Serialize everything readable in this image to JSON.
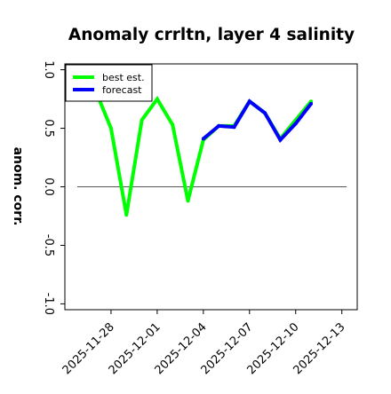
{
  "chart_data": {
    "type": "line",
    "title": "Anomaly crrltn, layer 4 salinity",
    "ylabel": "anom. corr.",
    "xlabel": "",
    "ylim": [
      -1.05,
      1.05
    ],
    "xlim": [
      "2025-11-25",
      "2025-12-14"
    ],
    "y_ticks": [
      -1.0,
      -0.5,
      0.0,
      0.5,
      1.0
    ],
    "y_tick_labels": [
      "-1.0",
      "-0.5",
      "0.0",
      "0.5",
      "1.0"
    ],
    "x_ticks": [
      "2025-11-28",
      "2025-12-01",
      "2025-12-04",
      "2025-12-07",
      "2025-12-10",
      "2025-12-13"
    ],
    "x_tick_labels": [
      "2025-11-28",
      "2025-12-01",
      "2025-12-04",
      "2025-12-07",
      "2025-12-10",
      "2025-12-13"
    ],
    "highlighted_tick": "2025-12-04",
    "zero_line": 0.0,
    "grid": false,
    "legend_position": "top-left",
    "series": [
      {
        "name": "best est.",
        "color": "#00ff00",
        "x": [
          "2025-11-27",
          "2025-11-28",
          "2025-11-29",
          "2025-11-30",
          "2025-12-01",
          "2025-12-02",
          "2025-12-03",
          "2025-12-04",
          "2025-12-05",
          "2025-12-06",
          "2025-12-07",
          "2025-12-08",
          "2025-12-09",
          "2025-12-10",
          "2025-12-11"
        ],
        "values": [
          0.82,
          0.5,
          -0.24,
          0.57,
          0.75,
          0.53,
          -0.12,
          0.4,
          0.52,
          0.52,
          0.73,
          0.63,
          0.41,
          0.57,
          0.73
        ]
      },
      {
        "name": "forecast",
        "color": "#0000ff",
        "x": [
          "2025-12-04",
          "2025-12-05",
          "2025-12-06",
          "2025-12-07",
          "2025-12-08",
          "2025-12-09",
          "2025-12-10",
          "2025-12-11"
        ],
        "values": [
          0.41,
          0.52,
          0.51,
          0.73,
          0.63,
          0.4,
          0.54,
          0.71
        ]
      }
    ]
  }
}
